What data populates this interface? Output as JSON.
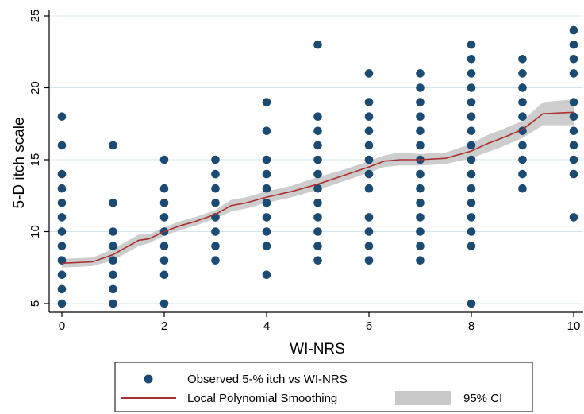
{
  "chart_data": {
    "type": "scatter",
    "xlabel": "WI-NRS",
    "ylabel": "5-D itch scale",
    "xlim": [
      -0.25,
      10.25
    ],
    "ylim": [
      4.5,
      25.5
    ],
    "x_ticks": [
      0,
      2,
      4,
      6,
      8,
      10
    ],
    "y_ticks": [
      5,
      10,
      15,
      20,
      25
    ],
    "grid": "horizontal",
    "legend_position": "bottom",
    "colors": {
      "points": "#1b4a72",
      "line": "#a83030",
      "ci": "#c8c8c8"
    },
    "points": [
      {
        "x": 0,
        "y": [
          5,
          6,
          7,
          8,
          9,
          10,
          11,
          12,
          13,
          14,
          16,
          18
        ]
      },
      {
        "x": 1,
        "y": [
          5,
          6,
          7,
          8,
          9,
          10,
          12,
          16
        ]
      },
      {
        "x": 2,
        "y": [
          5,
          7,
          8,
          9,
          10,
          11,
          12,
          13,
          15
        ]
      },
      {
        "x": 3,
        "y": [
          8,
          9,
          10,
          11,
          12,
          13,
          14,
          15
        ]
      },
      {
        "x": 4,
        "y": [
          7,
          9,
          10,
          11,
          12,
          13,
          14,
          15,
          17,
          19
        ]
      },
      {
        "x": 5,
        "y": [
          8,
          9,
          10,
          11,
          12,
          13,
          14,
          15,
          16,
          17,
          18,
          23
        ]
      },
      {
        "x": 6,
        "y": [
          8,
          9,
          10,
          11,
          13,
          14,
          15,
          16,
          17,
          18,
          19,
          21
        ]
      },
      {
        "x": 7,
        "y": [
          8,
          9,
          10,
          11,
          12,
          13,
          14,
          15,
          16,
          17,
          18,
          19,
          20,
          21
        ]
      },
      {
        "x": 8,
        "y": [
          5,
          9,
          10,
          11,
          12,
          13,
          14,
          15,
          16,
          17,
          18,
          19,
          20,
          21,
          22,
          23
        ]
      },
      {
        "x": 9,
        "y": [
          13,
          14,
          15,
          16,
          17,
          18,
          19,
          20,
          21,
          22
        ]
      },
      {
        "x": 10,
        "y": [
          11,
          14,
          15,
          16,
          17,
          18,
          19,
          21,
          22,
          23,
          24
        ]
      }
    ],
    "smooth": {
      "x": [
        0,
        0.6,
        1,
        1.2,
        1.5,
        1.7,
        2,
        2.3,
        2.6,
        3,
        3.3,
        3.6,
        4,
        4.5,
        5,
        5.5,
        6,
        6.3,
        6.6,
        7,
        7.5,
        8,
        8.3,
        8.6,
        9,
        9.4,
        10
      ],
      "y": [
        7.8,
        7.9,
        8.4,
        8.8,
        9.4,
        9.5,
        10.0,
        10.4,
        10.7,
        11.2,
        11.8,
        12.0,
        12.4,
        12.8,
        13.3,
        13.9,
        14.5,
        14.9,
        15.0,
        15.0,
        15.1,
        15.6,
        16.1,
        16.5,
        17.1,
        18.2,
        18.3
      ],
      "lower": [
        7.5,
        7.6,
        8.0,
        8.4,
        9.0,
        9.2,
        9.7,
        10.1,
        10.4,
        10.9,
        11.4,
        11.6,
        12.0,
        12.4,
        12.9,
        13.5,
        14.1,
        14.5,
        14.6,
        14.6,
        14.7,
        15.1,
        15.5,
        15.9,
        16.5,
        17.4,
        17.4
      ],
      "upper": [
        8.1,
        8.2,
        8.8,
        9.2,
        9.8,
        9.8,
        10.3,
        10.7,
        11.0,
        11.5,
        12.2,
        12.4,
        12.8,
        13.2,
        13.8,
        14.3,
        14.9,
        15.3,
        15.5,
        15.4,
        15.5,
        16.1,
        16.7,
        17.1,
        17.7,
        19.0,
        19.2
      ]
    },
    "legend": {
      "scatter": "Observed 5-% itch vs WI-NRS",
      "line": "Local Polynomial Smoothing",
      "ci": "95% CI"
    }
  }
}
